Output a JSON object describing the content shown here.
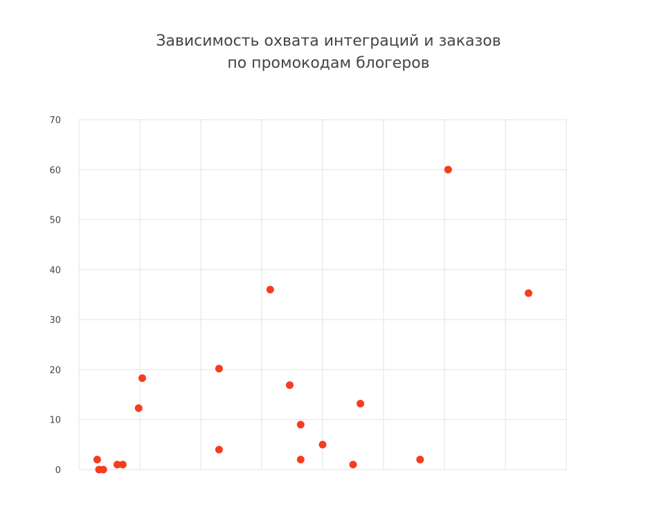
{
  "chart_data": {
    "type": "scatter",
    "title_lines": [
      "Зависимость охвата интеграций и заказов",
      "по промокодам блогеров"
    ],
    "xlabel": "",
    "ylabel": "",
    "ylim": [
      0,
      70
    ],
    "y_ticks": [
      0,
      10,
      20,
      30,
      40,
      50,
      60,
      70
    ],
    "y_tick_labels": [
      "0",
      "10",
      "20",
      "30",
      "40",
      "50",
      "60",
      "70"
    ],
    "x_gridlines": 8,
    "grid": true,
    "legend": "none",
    "point_color": "#f53d1e",
    "points": [
      {
        "x": 0.3,
        "y": 2
      },
      {
        "x": 0.33,
        "y": 0
      },
      {
        "x": 0.4,
        "y": 0
      },
      {
        "x": 0.63,
        "y": 1
      },
      {
        "x": 0.72,
        "y": 1
      },
      {
        "x": 0.98,
        "y": 12.3
      },
      {
        "x": 1.04,
        "y": 18.3
      },
      {
        "x": 2.3,
        "y": 4
      },
      {
        "x": 2.3,
        "y": 20.2
      },
      {
        "x": 3.14,
        "y": 36
      },
      {
        "x": 3.46,
        "y": 16.9
      },
      {
        "x": 3.64,
        "y": 9
      },
      {
        "x": 3.64,
        "y": 2
      },
      {
        "x": 4.0,
        "y": 5
      },
      {
        "x": 4.5,
        "y": 1
      },
      {
        "x": 4.62,
        "y": 13.2
      },
      {
        "x": 5.6,
        "y": 2
      },
      {
        "x": 6.06,
        "y": 60
      },
      {
        "x": 7.38,
        "y": 35.3
      }
    ]
  }
}
